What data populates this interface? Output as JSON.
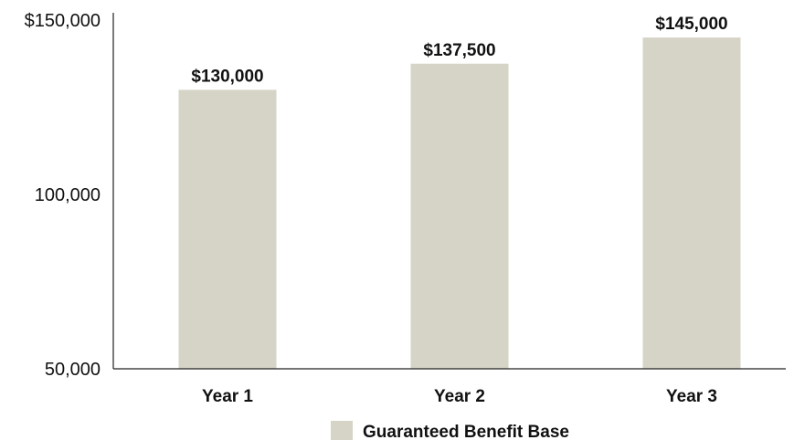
{
  "chart_data": {
    "type": "bar",
    "categories": [
      "Year 1",
      "Year 2",
      "Year 3"
    ],
    "series": [
      {
        "name": "Guaranteed Benefit Base",
        "values": [
          130000,
          137500,
          145000
        ],
        "data_labels": [
          "$130,000",
          "$137,500",
          "$145,000"
        ],
        "color": "#d6d4c7"
      }
    ],
    "ylim": [
      50000,
      150000
    ],
    "yticks": [
      50000,
      100000,
      150000
    ],
    "ytick_labels": [
      "50,000",
      "100,000",
      "$150,000"
    ],
    "grid": false,
    "legend_position": "bottom-center"
  }
}
